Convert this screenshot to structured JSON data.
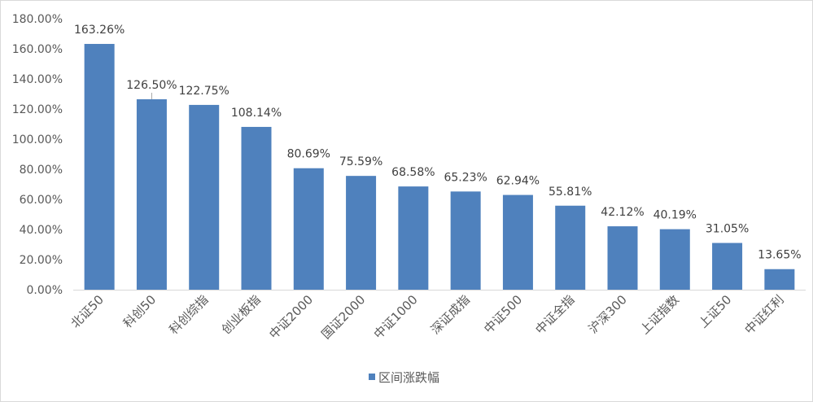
{
  "chart_data": {
    "type": "bar",
    "categories": [
      "北证50",
      "科创50",
      "科创综指",
      "创业板指",
      "中证2000",
      "国证2000",
      "中证1000",
      "深证成指",
      "中证500",
      "中证全指",
      "沪深300",
      "上证指数",
      "上证50",
      "中证红利"
    ],
    "series": [
      {
        "name": "区间涨跌幅",
        "values": [
          163.26,
          126.5,
          122.75,
          108.14,
          80.69,
          75.59,
          68.58,
          65.23,
          62.94,
          55.81,
          42.12,
          40.19,
          31.05,
          13.65
        ],
        "labels": [
          "163.26%",
          "126.50%",
          "122.75%",
          "108.14%",
          "80.69%",
          "75.59%",
          "68.58%",
          "65.23%",
          "62.94%",
          "55.81%",
          "42.12%",
          "40.19%",
          "31.05%",
          "13.65%"
        ]
      }
    ],
    "yticks": [
      "0.00%",
      "20.00%",
      "40.00%",
      "60.00%",
      "80.00%",
      "100.00%",
      "120.00%",
      "140.00%",
      "160.00%",
      "180.00%"
    ],
    "ylim": [
      0,
      180
    ],
    "grid": false,
    "legend_position": "bottom",
    "bar_color": "#4f81bd"
  }
}
